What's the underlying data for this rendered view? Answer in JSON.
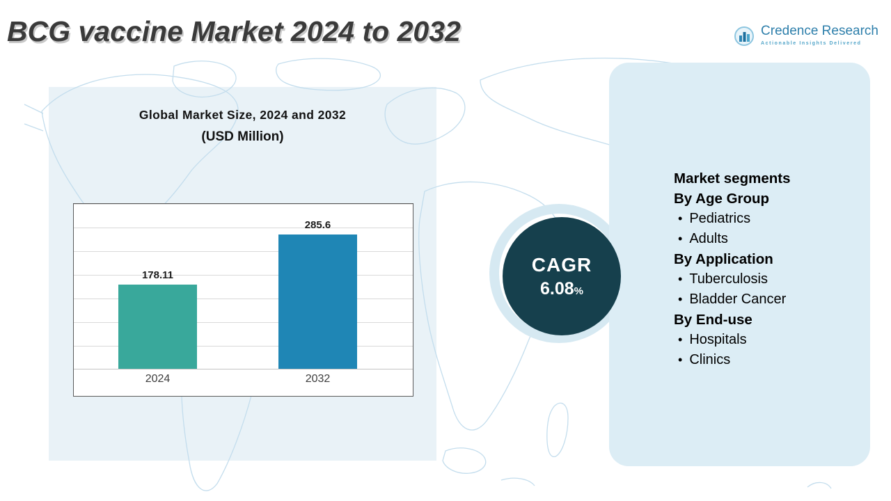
{
  "page_title": "BCG vaccine Market 2024 to 2032",
  "logo": {
    "name": "Credence Research",
    "tagline": "Actionable Insights Delivered"
  },
  "chart_panel": {
    "title": "Global Market Size, 2024 and 2032",
    "subtitle": "(USD Million)"
  },
  "chart_data": {
    "type": "bar",
    "title": "Global Market Size, 2024 and 2032",
    "subtitle": "(USD Million)",
    "categories": [
      "2024",
      "2032"
    ],
    "values": [
      178.11,
      285.6
    ],
    "value_labels": [
      "178.11",
      "285.6"
    ],
    "bar_colors": [
      "#39a89b",
      "#1f86b5"
    ],
    "ylim": [
      0,
      350
    ],
    "grid": true,
    "legend": false
  },
  "cagr": {
    "label": "CAGR",
    "value": "6.08",
    "unit": "%"
  },
  "segments": {
    "heading": "Market segments",
    "groups": [
      {
        "label": "By Age Group",
        "items": [
          "Pediatrics",
          "Adults"
        ]
      },
      {
        "label": "By Application",
        "items": [
          "Tuberculosis",
          "Bladder Cancer"
        ]
      },
      {
        "label": "By End-use",
        "items": [
          "Hospitals",
          "Clinics"
        ]
      }
    ]
  },
  "icons": {
    "bullet": "•",
    "logo_icon": "bar-chart-icon"
  },
  "colors": {
    "cagr_circle": "#16404d",
    "left_panel_bg": "#e9f2f7",
    "right_panel_bg": "#dcedf5",
    "logo_blue": "#2e7fab",
    "map_line": "#c3dded",
    "bar_2024": "#39a89b",
    "bar_2032": "#1f86b5"
  }
}
